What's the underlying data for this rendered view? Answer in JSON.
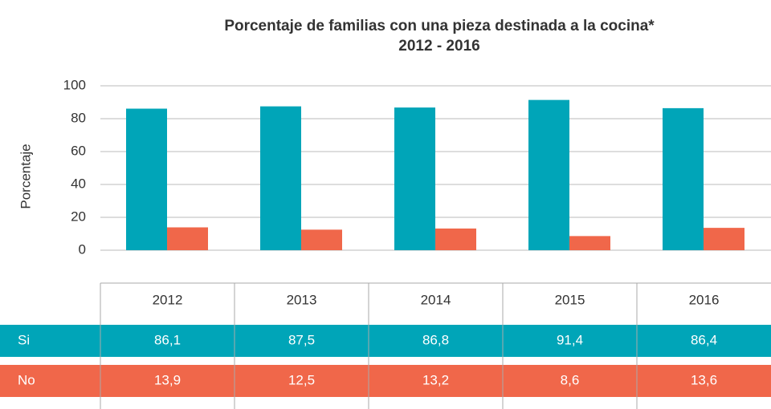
{
  "chart_data": {
    "type": "bar",
    "title": "Porcentaje de familias con una pieza destinada a la cocina*",
    "subtitle": "2012 - 2016",
    "y_label": "Porcentaje",
    "categories": [
      "2012",
      "2013",
      "2014",
      "2015",
      "2016"
    ],
    "series": [
      {
        "name": "Si",
        "color": "#00a5b8",
        "values": [
          86.1,
          87.5,
          86.8,
          91.4,
          86.4
        ],
        "value_labels": [
          "86,1",
          "87,5",
          "86,8",
          "91,4",
          "86,4"
        ]
      },
      {
        "name": "No",
        "color": "#f0674a",
        "values": [
          13.9,
          12.5,
          13.2,
          8.6,
          13.6
        ],
        "value_labels": [
          "13,9",
          "12,5",
          "13,2",
          "8,6",
          "13,6"
        ]
      }
    ],
    "ylim": [
      -20,
      100
    ],
    "yticks": [
      0,
      20,
      40,
      60,
      80,
      100
    ],
    "grid": true
  }
}
